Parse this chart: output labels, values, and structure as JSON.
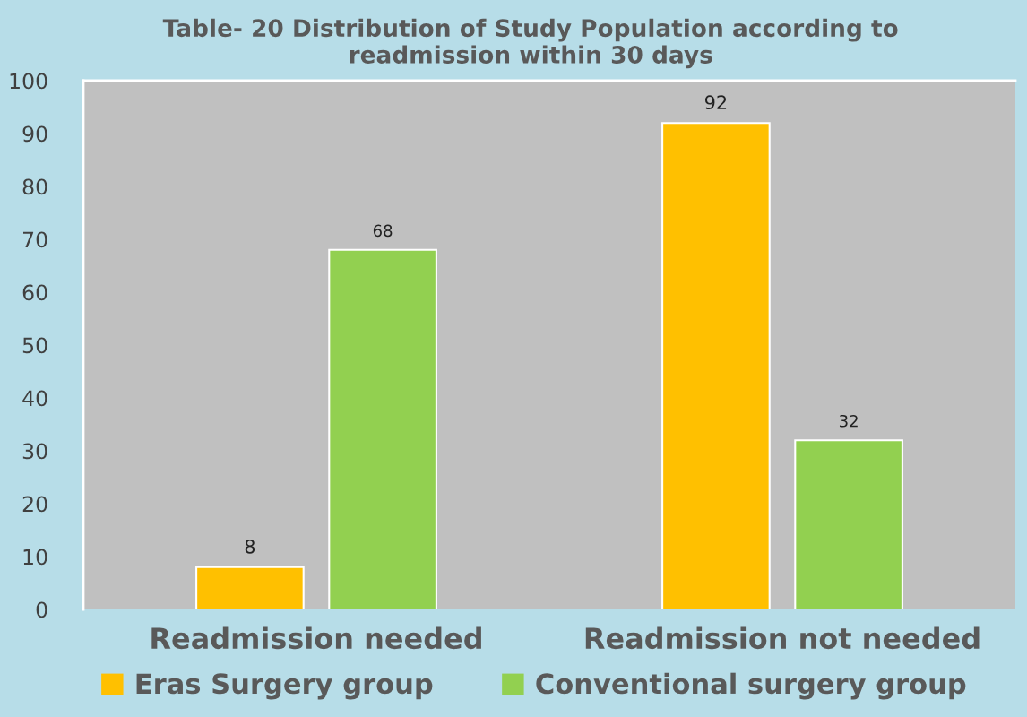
{
  "chart_data": {
    "type": "bar",
    "title": "Table- 20 Distribution of Study Population according to\nreadmission within 30 days",
    "categories": [
      "Readmission needed",
      "Readmission not needed"
    ],
    "series": [
      {
        "name": "Eras Surgery group",
        "color": "#ffc000",
        "values": [
          8,
          92
        ]
      },
      {
        "name": "Conventional surgery group",
        "color": "#92d050",
        "values": [
          68,
          32
        ]
      }
    ],
    "ylim": [
      0,
      100
    ],
    "yticks": [
      0,
      10,
      20,
      30,
      40,
      50,
      60,
      70,
      80,
      90,
      100
    ],
    "grid": false,
    "data_labels": true,
    "legend": "bottom"
  }
}
